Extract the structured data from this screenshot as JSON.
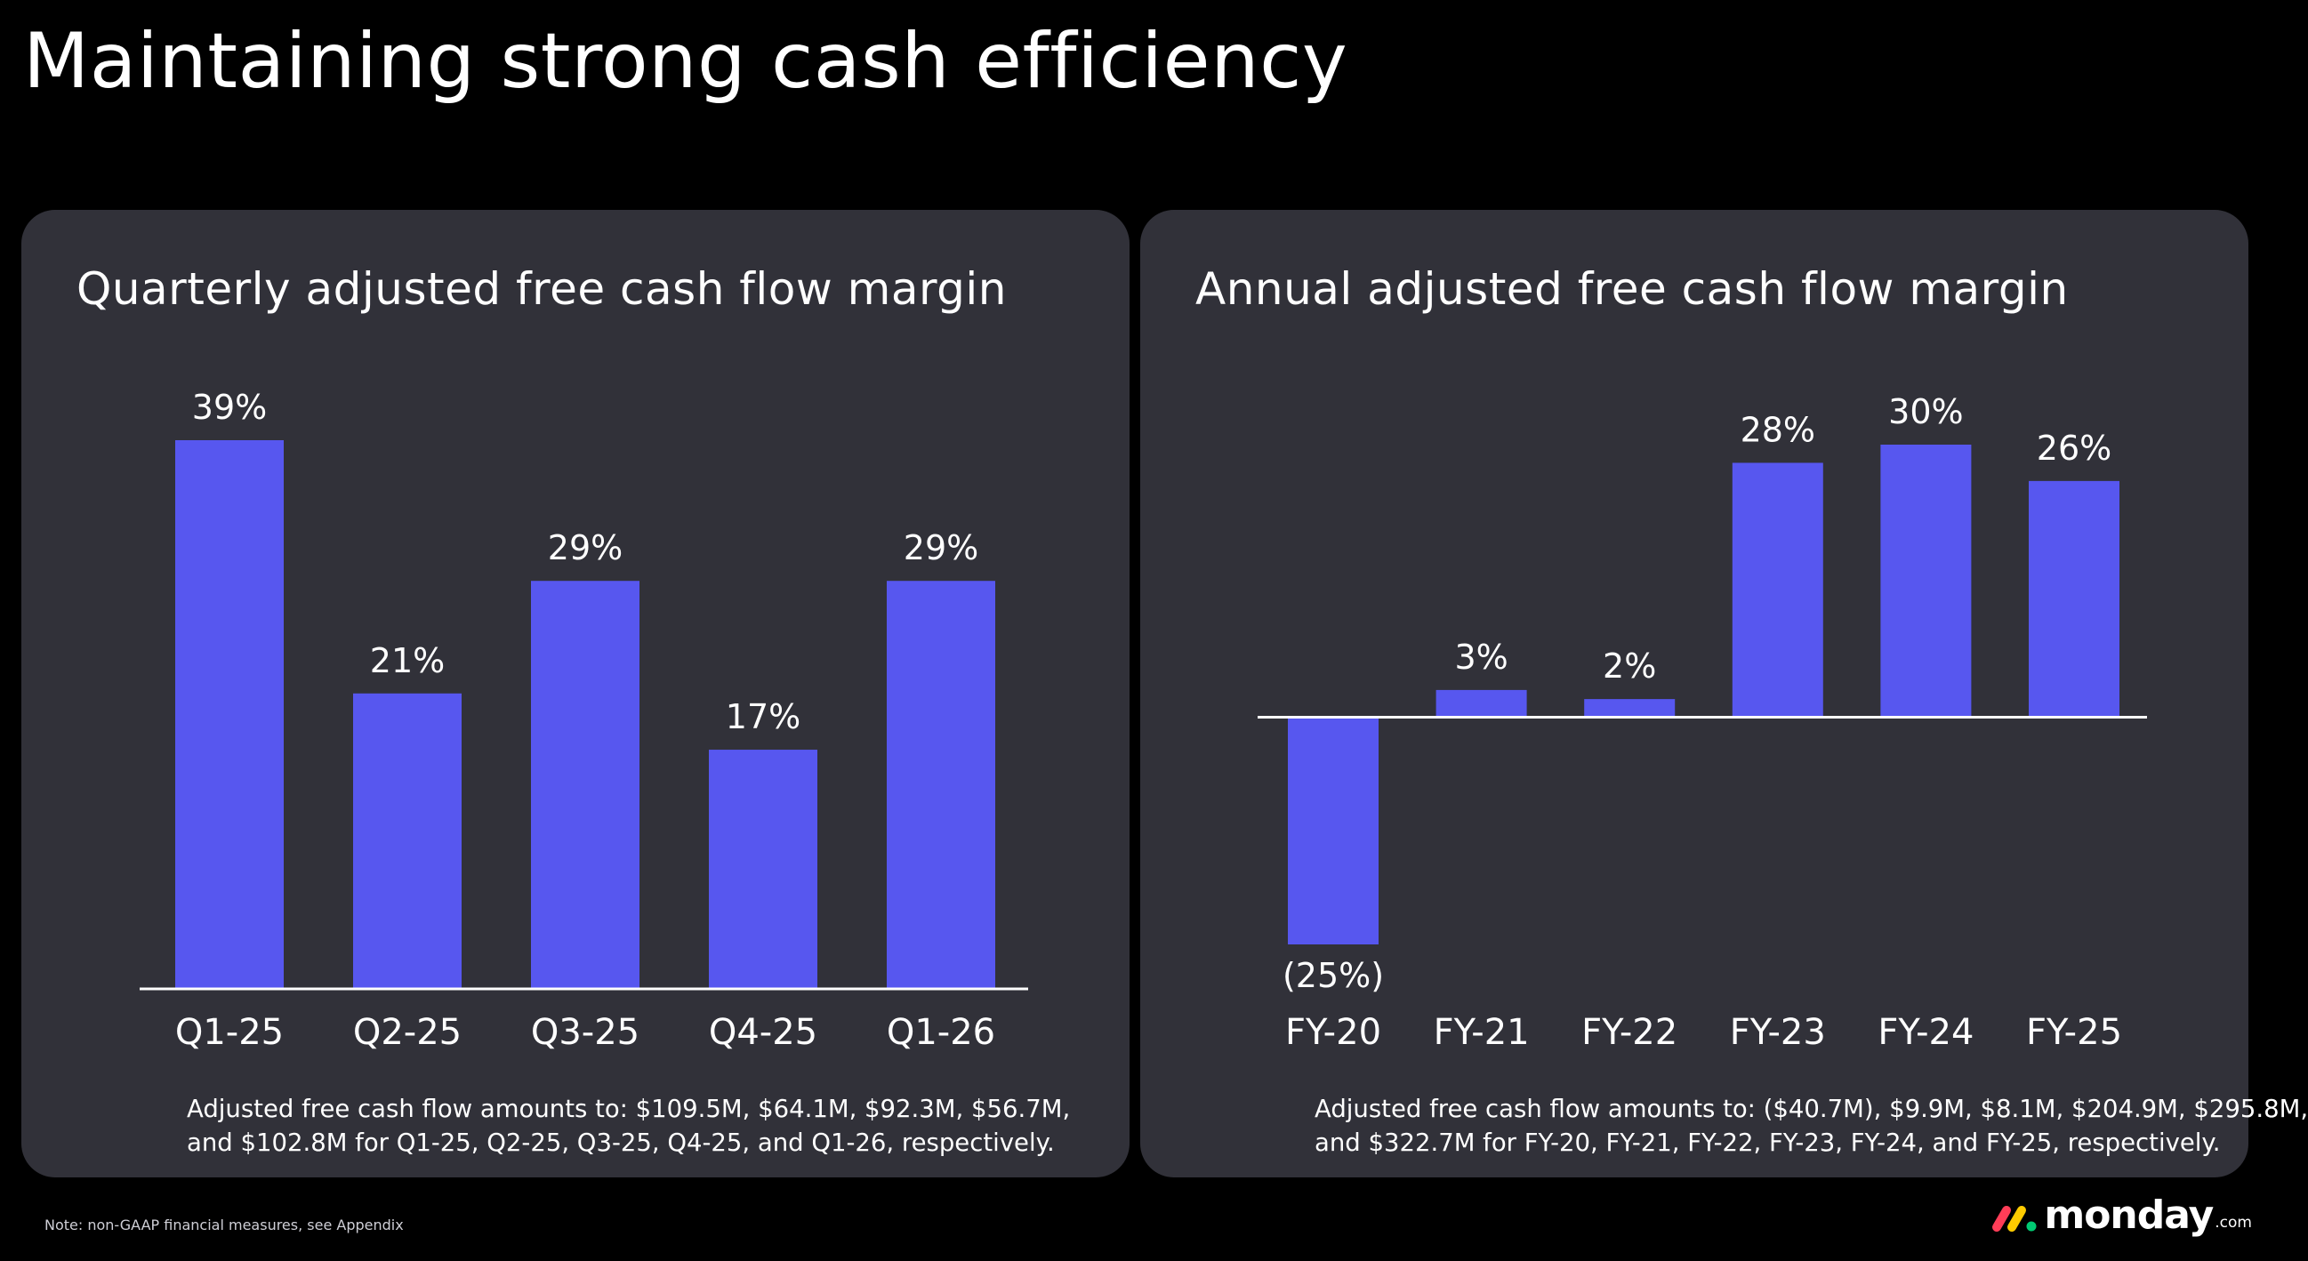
{
  "page": {
    "title": "Maintaining strong cash efficiency",
    "footnote": "Note: non-GAAP financial measures, see Appendix",
    "logo_text": "monday",
    "logo_suffix": ".com"
  },
  "colors": {
    "background": "#000000",
    "panel": "#313139",
    "bar": "#5757EF",
    "axis": "#FFFFFF",
    "logo_red": "#FF3D57",
    "logo_yellow": "#FFCB00",
    "logo_green": "#00CA72"
  },
  "chart_data": [
    {
      "type": "bar",
      "title": "Quarterly adjusted free cash flow margin",
      "categories": [
        "Q1-25",
        "Q2-25",
        "Q3-25",
        "Q4-25",
        "Q1-26"
      ],
      "values": [
        39,
        21,
        29,
        17,
        29
      ],
      "value_labels": [
        "39%",
        "21%",
        "29%",
        "17%",
        "29%"
      ],
      "ylim": [
        0,
        39
      ],
      "grid": false,
      "legend": "none",
      "note_lines": [
        "Adjusted free cash flow amounts to: $109.5M, $64.1M, $92.3M, $56.7M,",
        "and $102.8M for Q1-25, Q2-25, Q3-25, Q4-25, and Q1-26, respectively."
      ]
    },
    {
      "type": "bar",
      "title": "Annual adjusted free cash flow margin",
      "categories": [
        "FY-20",
        "FY-21",
        "FY-22",
        "FY-23",
        "FY-24",
        "FY-25"
      ],
      "values": [
        -25,
        3,
        2,
        28,
        30,
        26
      ],
      "value_labels": [
        "(25%)",
        "3%",
        "2%",
        "28%",
        "30%",
        "26%"
      ],
      "ylim": [
        -25,
        30
      ],
      "grid": false,
      "legend": "none",
      "note_lines": [
        "Adjusted free cash flow amounts to: ($40.7M), $9.9M, $8.1M, $204.9M, $295.8M,",
        "and $322.7M for FY-20, FY-21, FY-22, FY-23, FY-24, and FY-25, respectively."
      ]
    }
  ]
}
